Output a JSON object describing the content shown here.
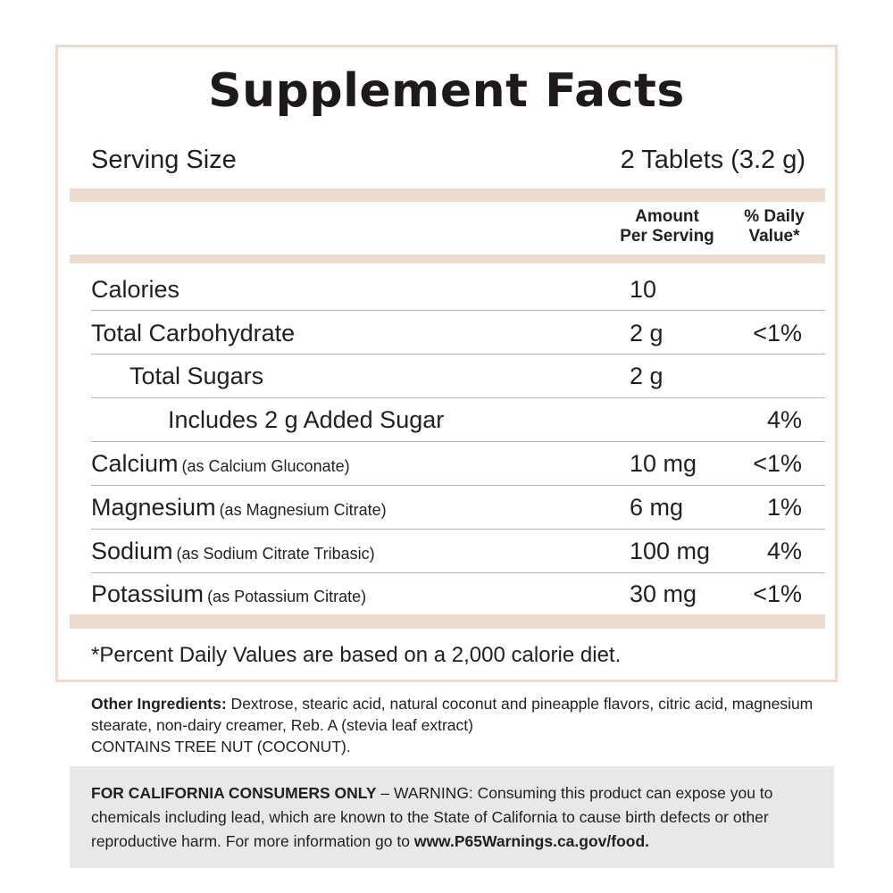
{
  "title": "Supplement Facts",
  "serving": {
    "label": "Serving Size",
    "value": "2 Tablets (3.2 g)"
  },
  "columns": {
    "amount_line1": "Amount",
    "amount_line2": "Per Serving",
    "dv_line1": "% Daily",
    "dv_line2": "Value*"
  },
  "rows": [
    {
      "name": "Calories",
      "sub": "",
      "amount": "10",
      "dv": ""
    },
    {
      "name": "Total Carbohydrate",
      "sub": "",
      "amount": "2 g",
      "dv": "<1%"
    },
    {
      "name": "Total Sugars",
      "sub": "",
      "amount": "2 g",
      "dv": ""
    },
    {
      "name": "Includes 2 g Added Sugar",
      "sub": "",
      "amount": "",
      "dv": "4%"
    },
    {
      "name": "Calcium",
      "sub": "(as Calcium Gluconate)",
      "amount": "10 mg",
      "dv": "<1%"
    },
    {
      "name": "Magnesium",
      "sub": "(as Magnesium Citrate)",
      "amount": "6 mg",
      "dv": "1%"
    },
    {
      "name": "Sodium",
      "sub": "(as Sodium Citrate Tribasic)",
      "amount": "100 mg",
      "dv": "4%"
    },
    {
      "name": "Potassium",
      "sub": "(as Potassium Citrate)",
      "amount": "30 mg",
      "dv": "<1%"
    }
  ],
  "footnote": "*Percent Daily Values are based on a 2,000 calorie diet.",
  "ingredients": {
    "label": "Other Ingredients:",
    "text": " Dextrose, stearic acid, natural coconut and pineapple flavors, citric acid, magnesium stearate, non-dairy creamer, Reb. A (stevia leaf extract)",
    "allergen": "CONTAINS TREE NUT (COCONUT)."
  },
  "warning": {
    "label": "FOR CALIFORNIA CONSUMERS ONLY",
    "text": " – WARNING: Consuming this product can expose you to chemicals including lead, which are known to the State of California to cause birth defects or other reproductive harm. For more information go to ",
    "url": "www.P65Warnings.ca.gov/food."
  },
  "colors": {
    "band": "#eddccd",
    "warning_bg": "#e8e8e8",
    "text": "#231f20"
  }
}
